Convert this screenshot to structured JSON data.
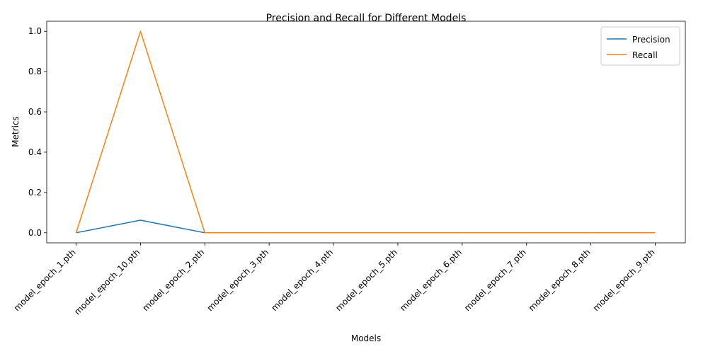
{
  "chart_data": {
    "type": "line",
    "title": "Precision and Recall for Different Models",
    "xlabel": "Models",
    "ylabel": "Metrics",
    "categories": [
      "model_epoch_1.pth",
      "model_epoch_10.pth",
      "model_epoch_2.pth",
      "model_epoch_3.pth",
      "model_epoch_4.pth",
      "model_epoch_5.pth",
      "model_epoch_6.pth",
      "model_epoch_7.pth",
      "model_epoch_8.pth",
      "model_epoch_9.pth"
    ],
    "series": [
      {
        "name": "Precision",
        "color": "#1f77b4",
        "values": [
          0.0,
          0.0625,
          0.0,
          0.0,
          0.0,
          0.0,
          0.0,
          0.0,
          0.0,
          0.0
        ]
      },
      {
        "name": "Recall",
        "color": "#ff7f0e",
        "values": [
          0.0,
          1.0,
          0.0,
          0.0,
          0.0,
          0.0,
          0.0,
          0.0,
          0.0,
          0.0
        ]
      }
    ],
    "ylim": [
      -0.05,
      1.05
    ],
    "yticks": [
      "0.0",
      "0.2",
      "0.4",
      "0.6",
      "0.8",
      "1.0"
    ],
    "legend_position": "top-right",
    "grid": false
  }
}
